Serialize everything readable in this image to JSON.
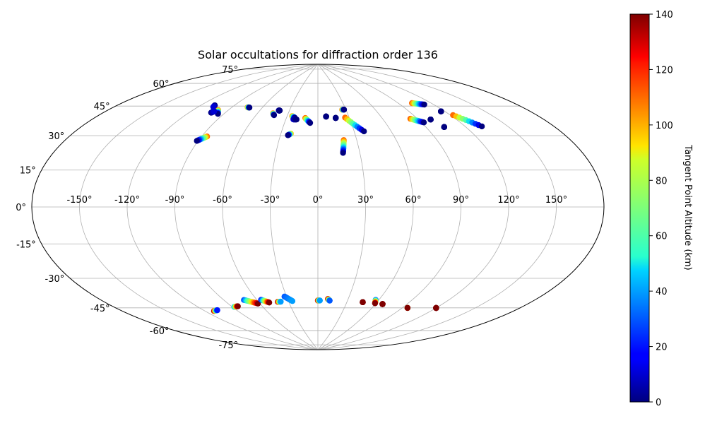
{
  "chart_data": {
    "type": "scatter",
    "projection": "aitoff",
    "title": "Solar occultations for diffraction order 136",
    "x_ticks": [
      "-150°",
      "-120°",
      "-90°",
      "-60°",
      "-30°",
      "0°",
      "30°",
      "60°",
      "90°",
      "120°",
      "150°"
    ],
    "y_ticks": [
      "-75°",
      "-60°",
      "-45°",
      "-30°",
      "-15°",
      "0°",
      "15°",
      "30°",
      "45°",
      "60°",
      "75°"
    ],
    "xlim": [
      -180,
      180
    ],
    "ylim": [
      -90,
      90
    ],
    "grid": true,
    "colorbar": {
      "label": "Tangent Point Altitude (km)",
      "colormap": "jet",
      "range": [
        0,
        140
      ],
      "ticks": [
        "0",
        "20",
        "40",
        "60",
        "80",
        "100",
        "120",
        "140"
      ]
    },
    "occultations": [
      {
        "lon_start": -108,
        "lon_end": -107,
        "lat_start": 58,
        "lat_end": 57,
        "alt_start": 0,
        "alt_end": 10
      },
      {
        "lon_start": -99,
        "lon_end": -95,
        "lat_start": 56,
        "lat_end": 54,
        "alt_start": 110,
        "alt_end": 0
      },
      {
        "lon_start": -102,
        "lon_end": -101,
        "lat_start": 54,
        "lat_end": 55,
        "alt_start": 0,
        "alt_end": 10
      },
      {
        "lon_start": -86,
        "lon_end": -91,
        "lat_start": 41,
        "lat_end": 38,
        "alt_start": 110,
        "alt_end": 0
      },
      {
        "lon_start": -75,
        "lon_end": -73,
        "lat_start": 60,
        "lat_end": 60,
        "alt_start": 110,
        "alt_end": 0
      },
      {
        "lon_start": -45,
        "lon_end": -43,
        "lat_start": 58,
        "lat_end": 57,
        "alt_start": 110,
        "alt_end": 0
      },
      {
        "lon_start": -41,
        "lon_end": -40,
        "lat_start": 60,
        "lat_end": 60,
        "alt_start": 5,
        "alt_end": 0
      },
      {
        "lon_start": -25,
        "lon_end": -22,
        "lat_start": 57,
        "lat_end": 56,
        "alt_start": 110,
        "alt_end": 0
      },
      {
        "lon_start": -23,
        "lon_end": -20,
        "lat_start": 55,
        "lat_end": 55,
        "alt_start": 10,
        "alt_end": 0
      },
      {
        "lon_start": -22,
        "lon_end": -24,
        "lat_start": 46,
        "lat_end": 45,
        "alt_start": 100,
        "alt_end": 0
      },
      {
        "lon_start": -12,
        "lon_end": -7,
        "lat_start": 56,
        "lat_end": 53,
        "alt_start": 110,
        "alt_end": 0
      },
      {
        "lon_start": 8,
        "lon_end": 8,
        "lat_start": 57,
        "lat_end": 57,
        "alt_start": 0,
        "alt_end": 0
      },
      {
        "lon_start": 17,
        "lon_end": 17,
        "lat_start": 56,
        "lat_end": 56,
        "alt_start": 0,
        "alt_end": 0
      },
      {
        "lon_start": 26,
        "lon_end": 28,
        "lat_start": 61,
        "lat_end": 61,
        "alt_start": 110,
        "alt_end": 0
      },
      {
        "lon_start": 26,
        "lon_end": 38,
        "lat_start": 56,
        "lat_end": 47,
        "alt_start": 110,
        "alt_end": 0
      },
      {
        "lon_start": 20,
        "lon_end": 18,
        "lat_start": 42,
        "lat_end": 34,
        "alt_start": 110,
        "alt_end": 0
      },
      {
        "lon_start": 84,
        "lon_end": 92,
        "lat_start": 52,
        "lat_end": 49,
        "alt_start": 110,
        "alt_end": 0
      },
      {
        "lon_start": 103,
        "lon_end": 112,
        "lat_start": 60,
        "lat_end": 58,
        "alt_start": 110,
        "alt_end": 0
      },
      {
        "lon_start": 100,
        "lon_end": 100,
        "lat_start": 50,
        "lat_end": 50,
        "alt_start": 0,
        "alt_end": 0
      },
      {
        "lon_start": 104,
        "lon_end": 104,
        "lat_start": 45,
        "lat_end": 45,
        "alt_start": 0,
        "alt_end": 0
      },
      {
        "lon_start": 117,
        "lon_end": 117,
        "lat_start": 53,
        "lat_end": 53,
        "alt_start": 0,
        "alt_end": 0
      },
      {
        "lon_start": 122,
        "lon_end": 132,
        "lat_start": 50,
        "lat_end": 42,
        "alt_start": 110,
        "alt_end": 0
      },
      {
        "lon_start": -112,
        "lon_end": -108,
        "lat_start": -59,
        "lat_end": -59,
        "alt_start": 140,
        "alt_end": 20
      },
      {
        "lon_start": -88,
        "lon_end": -84,
        "lat_start": -59,
        "lat_end": -59,
        "alt_start": 40,
        "alt_end": 140
      },
      {
        "lon_start": -72,
        "lon_end": -62,
        "lat_start": -56,
        "lat_end": -59,
        "alt_start": 30,
        "alt_end": 140
      },
      {
        "lon_start": -56,
        "lon_end": -50,
        "lat_start": -57,
        "lat_end": -59,
        "alt_start": 20,
        "alt_end": 140
      },
      {
        "lon_start": -41,
        "lon_end": -38,
        "lat_start": -59,
        "lat_end": -59,
        "alt_start": 140,
        "alt_end": 40
      },
      {
        "lon_start": -32,
        "lon_end": -26,
        "lat_start": -56,
        "lat_end": -59,
        "alt_start": 30,
        "alt_end": 40
      },
      {
        "lon_start": 0,
        "lon_end": 2,
        "lat_start": -59,
        "lat_end": -59,
        "alt_start": 140,
        "alt_end": 40
      },
      {
        "lon_start": 10,
        "lon_end": 12,
        "lat_start": -58,
        "lat_end": -59,
        "alt_start": 140,
        "alt_end": 30
      },
      {
        "lon_start": 46,
        "lon_end": 46,
        "lat_start": -59,
        "lat_end": -59,
        "alt_start": 140,
        "alt_end": 140
      },
      {
        "lon_start": 57,
        "lon_end": 59,
        "lat_start": -57,
        "lat_end": -59,
        "alt_start": 30,
        "alt_end": 140
      },
      {
        "lon_start": 67,
        "lon_end": 67,
        "lat_start": -59,
        "lat_end": -59,
        "alt_start": 140,
        "alt_end": 140
      },
      {
        "lon_start": 95,
        "lon_end": 95,
        "lat_start": -59,
        "lat_end": -59,
        "alt_start": 40,
        "alt_end": 140
      },
      {
        "lon_start": 120,
        "lon_end": 120,
        "lat_start": -56,
        "lat_end": -56,
        "alt_start": 140,
        "alt_end": 140
      }
    ]
  }
}
